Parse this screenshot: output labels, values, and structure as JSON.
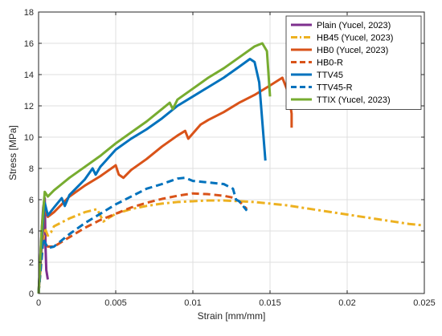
{
  "chart_data": {
    "type": "line",
    "title": "",
    "xlabel": "Strain [mm/mm]",
    "ylabel": "Stress [MPa]",
    "xlim": [
      0,
      0.025
    ],
    "ylim": [
      0,
      18
    ],
    "xticks": [
      0,
      0.005,
      0.01,
      0.015,
      0.02,
      0.025
    ],
    "xtick_labels": [
      "0",
      "0.005",
      "0.01",
      "0.015",
      "0.02",
      "0.025"
    ],
    "yticks": [
      0,
      2,
      4,
      6,
      8,
      10,
      12,
      14,
      16,
      18
    ],
    "ytick_labels": [
      "0",
      "2",
      "4",
      "6",
      "8",
      "10",
      "12",
      "14",
      "16",
      "18"
    ],
    "grid": true,
    "legend_position": "top-right",
    "series": [
      {
        "name": "Plain (Yucel, 2023)",
        "color": "#7E2F8E",
        "style": "solid",
        "x": [
          0,
          0.0001,
          0.0002,
          0.0003,
          0.0004,
          0.00045,
          0.0005,
          0.0006
        ],
        "y": [
          0,
          2.0,
          4.0,
          5.5,
          6.1,
          3.0,
          1.5,
          0.9
        ]
      },
      {
        "name": "HB45 (Yucel, 2023)",
        "color": "#EDB120",
        "style": "dashdot",
        "x": [
          0,
          0.0002,
          0.0004,
          0.0006,
          0.0008,
          0.001,
          0.002,
          0.003,
          0.0038,
          0.0042,
          0.0045,
          0.005,
          0.006,
          0.007,
          0.008,
          0.009,
          0.01,
          0.011,
          0.012,
          0.013,
          0.014,
          0.015,
          0.016,
          0.017,
          0.018,
          0.019,
          0.02,
          0.021,
          0.022,
          0.023,
          0.024,
          0.025
        ],
        "y": [
          0,
          2.5,
          4.2,
          3.7,
          3.9,
          4.3,
          4.8,
          5.2,
          5.4,
          4.6,
          4.8,
          5.1,
          5.4,
          5.6,
          5.75,
          5.85,
          5.9,
          5.95,
          5.95,
          5.9,
          5.85,
          5.75,
          5.65,
          5.5,
          5.35,
          5.2,
          5.05,
          4.9,
          4.75,
          4.6,
          4.45,
          4.35
        ]
      },
      {
        "name": "HB0 (Yucel, 2023)",
        "color": "#D95319",
        "style": "solid",
        "x": [
          0,
          0.0002,
          0.0004,
          0.0006,
          0.001,
          0.0015,
          0.002,
          0.003,
          0.004,
          0.005,
          0.0052,
          0.0055,
          0.006,
          0.007,
          0.008,
          0.009,
          0.0095,
          0.0097,
          0.0105,
          0.011,
          0.012,
          0.013,
          0.014,
          0.015,
          0.0158,
          0.0162,
          0.0164,
          0.0164
        ],
        "y": [
          0,
          3.0,
          5.5,
          4.9,
          5.2,
          5.7,
          6.2,
          6.9,
          7.5,
          8.2,
          7.6,
          7.4,
          7.9,
          8.6,
          9.4,
          10.1,
          10.4,
          9.9,
          10.8,
          11.1,
          11.6,
          12.2,
          12.7,
          13.3,
          13.8,
          12.8,
          11.5,
          10.6
        ]
      },
      {
        "name": "HB0-R",
        "color": "#D95319",
        "style": "dashed",
        "x": [
          0,
          0.0003,
          0.0006,
          0.001,
          0.002,
          0.003,
          0.004,
          0.005,
          0.006,
          0.007,
          0.008,
          0.009,
          0.01,
          0.011,
          0.012,
          0.0125,
          0.013,
          0.0135
        ],
        "y": [
          0,
          3.3,
          3.0,
          3.0,
          3.6,
          4.2,
          4.7,
          5.1,
          5.5,
          5.8,
          6.05,
          6.25,
          6.4,
          6.35,
          6.25,
          6.15,
          5.9,
          5.4
        ]
      },
      {
        "name": "TTV45",
        "color": "#0072BD",
        "style": "solid",
        "x": [
          0,
          0.0002,
          0.0004,
          0.0006,
          0.001,
          0.0015,
          0.0017,
          0.002,
          0.003,
          0.0035,
          0.0037,
          0.004,
          0.005,
          0.006,
          0.007,
          0.008,
          0.009,
          0.01,
          0.011,
          0.012,
          0.013,
          0.0137,
          0.014,
          0.0143,
          0.0145,
          0.0147
        ],
        "y": [
          0,
          3.5,
          5.8,
          5.0,
          5.5,
          6.1,
          5.6,
          6.3,
          7.3,
          8.0,
          7.6,
          8.1,
          9.2,
          9.9,
          10.5,
          11.2,
          12.0,
          12.6,
          13.2,
          13.8,
          14.5,
          15.0,
          14.8,
          13.5,
          11.0,
          8.5
        ]
      },
      {
        "name": "TTV45-R",
        "color": "#0072BD",
        "style": "dashed",
        "x": [
          0,
          0.0003,
          0.0006,
          0.001,
          0.002,
          0.003,
          0.004,
          0.005,
          0.006,
          0.007,
          0.008,
          0.009,
          0.0095,
          0.01,
          0.011,
          0.012,
          0.0126,
          0.0128,
          0.013,
          0.0135
        ],
        "y": [
          0,
          3.5,
          2.9,
          3.0,
          3.8,
          4.5,
          5.1,
          5.7,
          6.2,
          6.7,
          7.0,
          7.35,
          7.4,
          7.2,
          7.1,
          7.0,
          6.7,
          6.0,
          5.9,
          5.3
        ]
      },
      {
        "name": "TTIX (Yucel, 2023)",
        "color": "#77AC30",
        "style": "solid",
        "x": [
          0,
          0.0002,
          0.0004,
          0.0006,
          0.001,
          0.0015,
          0.002,
          0.003,
          0.004,
          0.005,
          0.006,
          0.007,
          0.008,
          0.0085,
          0.0087,
          0.009,
          0.01,
          0.011,
          0.012,
          0.013,
          0.014,
          0.0145,
          0.0148,
          0.015
        ],
        "y": [
          0,
          4.0,
          6.5,
          6.2,
          6.6,
          7.0,
          7.4,
          8.1,
          8.8,
          9.6,
          10.3,
          11.0,
          11.8,
          12.2,
          11.8,
          12.4,
          13.1,
          13.8,
          14.4,
          15.1,
          15.8,
          16.0,
          15.5,
          12.6
        ]
      }
    ]
  }
}
